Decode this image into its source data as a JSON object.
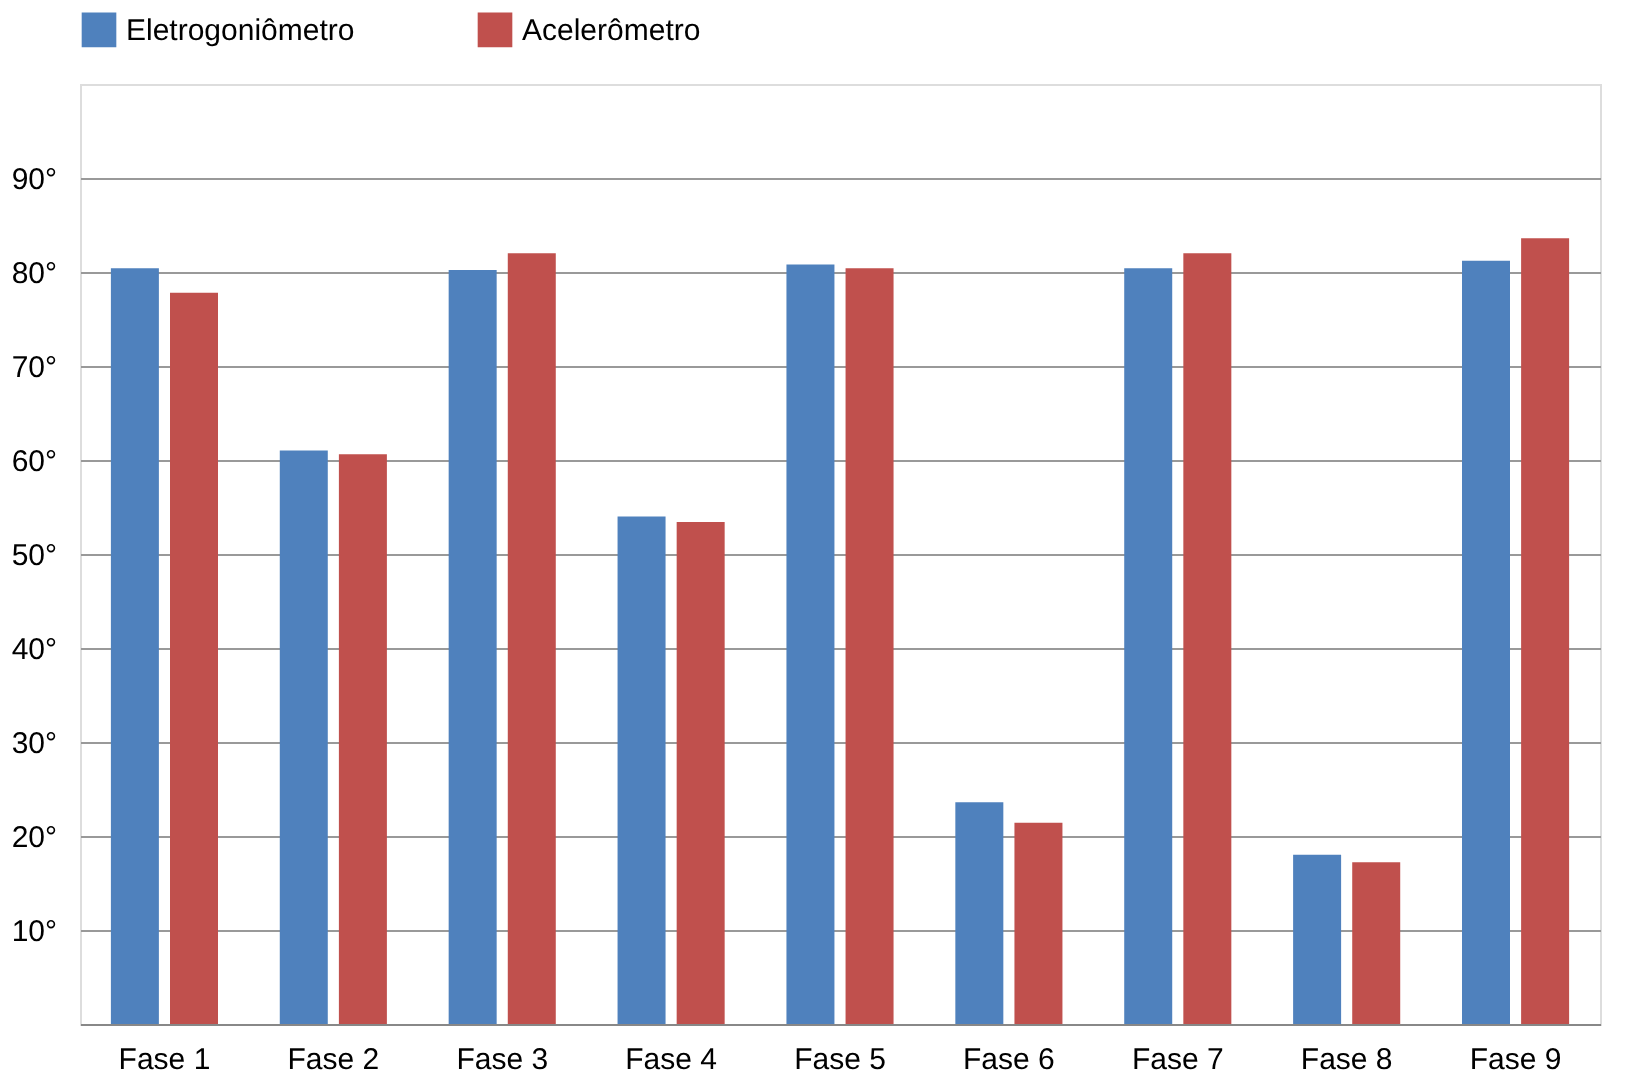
{
  "chart_data": {
    "type": "bar",
    "categories": [
      "Fase 1",
      "Fase 2",
      "Fase 3",
      "Fase 4",
      "Fase 5",
      "Fase 6",
      "Fase 7",
      "Fase 8",
      "Fase 9"
    ],
    "series": [
      {
        "name": "Eletrogoniômetro",
        "color": "#4f81bd",
        "values": [
          80.4,
          61,
          80.2,
          54,
          80.8,
          23.6,
          80.4,
          18,
          81.2
        ]
      },
      {
        "name": "Acelerômetro",
        "color": "#c0504d",
        "values": [
          77.8,
          60.6,
          82,
          53.4,
          80.4,
          21.4,
          82,
          17.2,
          83.6
        ]
      }
    ],
    "ylim": [
      0,
      100
    ],
    "yticks": [
      {
        "value": 10,
        "label": "10°"
      },
      {
        "value": 20,
        "label": "20°"
      },
      {
        "value": 30,
        "label": "30°"
      },
      {
        "value": 40,
        "label": "40°"
      },
      {
        "value": 50,
        "label": "50°"
      },
      {
        "value": 60,
        "label": "60°"
      },
      {
        "value": 70,
        "label": "70°"
      },
      {
        "value": 80,
        "label": "80°"
      },
      {
        "value": 90,
        "label": "90°"
      }
    ],
    "grid": "y",
    "legend": "top"
  }
}
